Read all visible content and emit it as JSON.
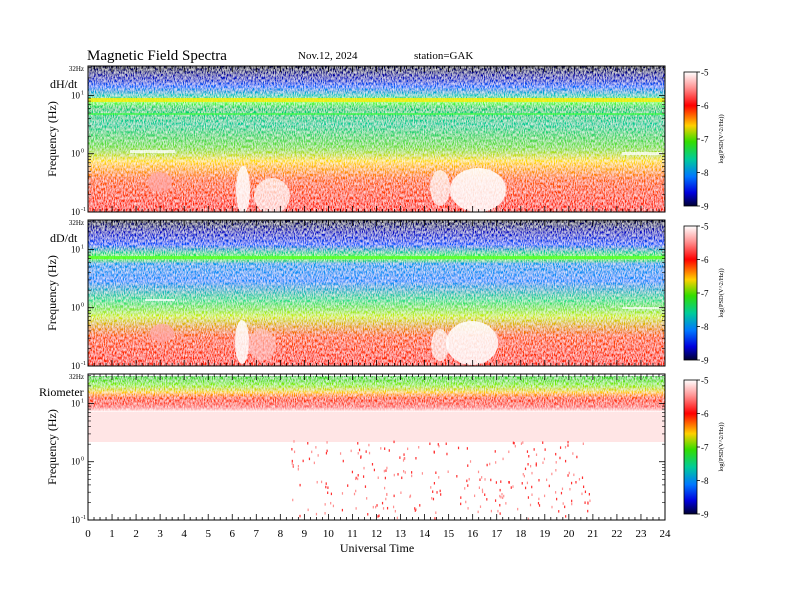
{
  "header": {
    "title": "Magnetic  Field  Spectra",
    "date": "Nov.12, 2024",
    "station": "station=GAK"
  },
  "chart_data": [
    {
      "type": "heatmap",
      "panel_label": "dH/dt",
      "ylabel": "Frequency  (Hz)",
      "y_tick_labels": [
        "32Hz",
        "10",
        "10",
        "10"
      ],
      "y_tick_exponents": [
        "",
        "1",
        "0",
        "-1"
      ],
      "colorbar": {
        "label": "log(PSD(V^2/Hz))",
        "range": [
          -9,
          -5
        ],
        "ticks": [
          "-5",
          "-6",
          "-7",
          "-8",
          "-9"
        ]
      }
    },
    {
      "type": "heatmap",
      "panel_label": "dD/dt",
      "ylabel": "Frequency  (Hz)",
      "y_tick_labels": [
        "32Hz",
        "10",
        "10",
        "10"
      ],
      "y_tick_exponents": [
        "",
        "1",
        "0",
        "-1"
      ],
      "colorbar": {
        "label": "log(PSD(V^2/Hz))",
        "range": [
          -9,
          -5
        ],
        "ticks": [
          "-5",
          "-6",
          "-7",
          "-8",
          "-9"
        ]
      }
    },
    {
      "type": "heatmap",
      "panel_label": "Riometer",
      "ylabel": "Frequency  (Hz)",
      "y_tick_labels": [
        "32Hz",
        "10",
        "10",
        "10"
      ],
      "y_tick_exponents": [
        "",
        "1",
        "0",
        "-1"
      ],
      "colorbar": {
        "label": "log(PSD(V^2/Hz))",
        "range": [
          -9,
          -5
        ],
        "ticks": [
          "-5",
          "-6",
          "-7",
          "-8",
          "-9"
        ]
      }
    }
  ],
  "x_axis": {
    "label": "Universal  Time",
    "range": [
      0,
      24
    ],
    "ticks": [
      "0",
      "1",
      "2",
      "3",
      "4",
      "5",
      "6",
      "7",
      "8",
      "9",
      "10",
      "11",
      "12",
      "13",
      "14",
      "15",
      "16",
      "17",
      "18",
      "19",
      "20",
      "21",
      "22",
      "23",
      "24"
    ]
  }
}
